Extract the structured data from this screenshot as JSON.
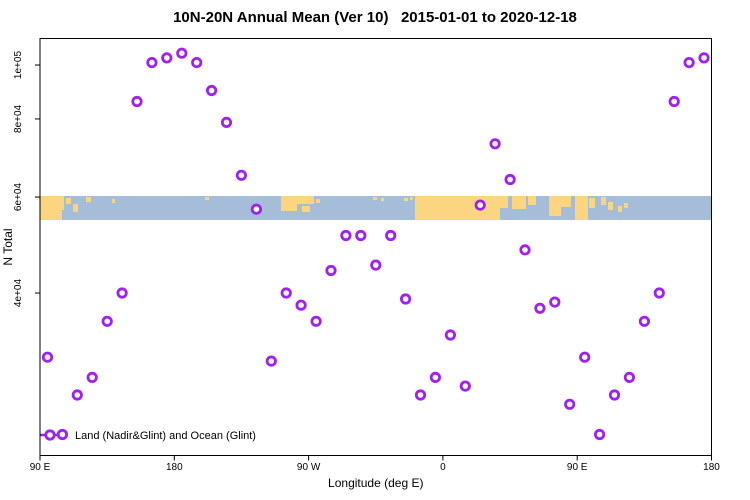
{
  "title": "10N-20N Annual Mean (Ver 10)   2015-01-01 to 2020-12-18",
  "axes": {
    "x_label": "Longitude (deg E)",
    "y_label": "N Total",
    "x_ticks": [
      {
        "label": "90 E",
        "lon": 90
      },
      {
        "label": "180",
        "lon": 180
      },
      {
        "label": "90 W",
        "lon": 270
      },
      {
        "label": "0",
        "lon": 360
      },
      {
        "label": "90 E",
        "lon": 450
      },
      {
        "label": "180",
        "lon": 540
      }
    ],
    "y_ticks": [
      {
        "label": "1e+05",
        "value": 100000
      },
      {
        "label": "8e+04",
        "value": 80000
      },
      {
        "label": "6e+04",
        "value": 60000
      },
      {
        "label": "4e+04",
        "value": 40000
      }
    ]
  },
  "legend": {
    "label": "Land (Nadir&Glint) and Ocean (Glint)"
  },
  "colors": {
    "point": "#a020f0",
    "ocean": "#a6bdd9",
    "land": "#fbd57f",
    "axis": "#000000",
    "background": "#ffffff"
  },
  "map_strip": {
    "description": "10N-20N latitude world coastline strip (land=tan, ocean=blue)"
  },
  "chart_data": {
    "type": "scatter",
    "title": "10N-20N Annual Mean (Ver 10)   2015-01-01 to 2020-12-18",
    "xlabel": "Longitude (deg E)",
    "ylabel": "N Total",
    "series_name": "N Total per 10-degree longitude bin",
    "x_range": [
      90,
      540
    ],
    "y_scale": "log",
    "ylim": [
      20000,
      112000
    ],
    "grid": false,
    "legend_position": "bottom-left",
    "x": [
      95,
      105,
      115,
      125,
      135,
      145,
      155,
      165,
      175,
      185,
      195,
      205,
      215,
      225,
      235,
      245,
      255,
      265,
      275,
      285,
      295,
      305,
      315,
      325,
      335,
      345,
      355,
      365,
      375,
      385,
      395,
      405,
      415,
      425,
      435,
      445,
      455,
      465,
      475,
      485,
      495,
      505,
      515,
      525,
      535
    ],
    "y": [
      30500,
      22000,
      26000,
      28000,
      35500,
      40000,
      86000,
      101000,
      103000,
      105000,
      101000,
      90000,
      79000,
      65000,
      57000,
      30000,
      40000,
      38000,
      35500,
      44000,
      51000,
      51000,
      45000,
      51000,
      39000,
      26000,
      28000,
      33500,
      27000,
      58000,
      73000,
      64000,
      48000,
      37500,
      38500,
      25000,
      30500,
      22000,
      26000,
      28000,
      35500,
      40000,
      86000,
      101000,
      103000
    ]
  }
}
